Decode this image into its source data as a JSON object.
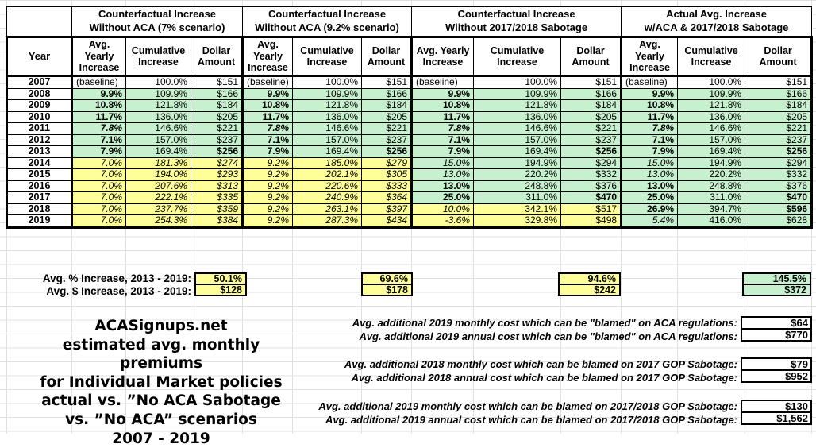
{
  "table": {
    "groups": [
      {
        "line1": "Counterfactual Increase",
        "line2": "Wiithout ACA (7% scenario)"
      },
      {
        "line1": "Counterfactual Increase",
        "line2": "Wiithout ACA (9.2% scenario)"
      },
      {
        "line1": "Counterfactual Increase",
        "line2": "Wiithout 2017/2018 Sabotage"
      },
      {
        "line1": "Actual Avg. Increase",
        "line2": "w/ACA & 2017/2018 Sabotage"
      }
    ],
    "year_header": "Year",
    "subheaders": [
      "Avg. Yearly Increase",
      "Cumulative Increase",
      "Dollar Amount"
    ],
    "rows": [
      {
        "y": "2007",
        "c": [
          [
            "(baseline)",
            "n",
            "w"
          ],
          [
            "100.0%",
            "n",
            "w"
          ],
          [
            "$151",
            "n",
            "w"
          ],
          [
            "(baseline)",
            "n",
            "w"
          ],
          [
            "100.0%",
            "n",
            "w"
          ],
          [
            "$151",
            "n",
            "w"
          ],
          [
            "(baseline)",
            "n",
            "w"
          ],
          [
            "100.0%",
            "n",
            "w"
          ],
          [
            "$151",
            "n",
            "w"
          ],
          [
            "(baseline)",
            "n",
            "w"
          ],
          [
            "100.0%",
            "n",
            "w"
          ],
          [
            "$151",
            "n",
            "w"
          ]
        ]
      },
      {
        "y": "2008",
        "c": [
          [
            "9.9%",
            "b",
            "g"
          ],
          [
            "109.9%",
            "n",
            "g"
          ],
          [
            "$166",
            "n",
            "g"
          ],
          [
            "9.9%",
            "b",
            "g"
          ],
          [
            "109.9%",
            "n",
            "g"
          ],
          [
            "$166",
            "n",
            "g"
          ],
          [
            "9.9%",
            "b",
            "g"
          ],
          [
            "109.9%",
            "n",
            "g"
          ],
          [
            "$166",
            "n",
            "g"
          ],
          [
            "9.9%",
            "b",
            "g"
          ],
          [
            "109.9%",
            "n",
            "g"
          ],
          [
            "$166",
            "n",
            "g"
          ]
        ]
      },
      {
        "y": "2009",
        "c": [
          [
            "10.8%",
            "b",
            "g"
          ],
          [
            "121.8%",
            "n",
            "g"
          ],
          [
            "$184",
            "n",
            "g"
          ],
          [
            "10.8%",
            "b",
            "g"
          ],
          [
            "121.8%",
            "n",
            "g"
          ],
          [
            "$184",
            "n",
            "g"
          ],
          [
            "10.8%",
            "b",
            "g"
          ],
          [
            "121.8%",
            "n",
            "g"
          ],
          [
            "$184",
            "n",
            "g"
          ],
          [
            "10.8%",
            "b",
            "g"
          ],
          [
            "121.8%",
            "n",
            "g"
          ],
          [
            "$184",
            "n",
            "g"
          ]
        ]
      },
      {
        "y": "2010",
        "c": [
          [
            "11.7%",
            "b",
            "g"
          ],
          [
            "136.0%",
            "n",
            "g"
          ],
          [
            "$205",
            "n",
            "g"
          ],
          [
            "11.7%",
            "b",
            "g"
          ],
          [
            "136.0%",
            "n",
            "g"
          ],
          [
            "$205",
            "n",
            "g"
          ],
          [
            "11.7%",
            "b",
            "g"
          ],
          [
            "136.0%",
            "n",
            "g"
          ],
          [
            "$205",
            "n",
            "g"
          ],
          [
            "11.7%",
            "b",
            "g"
          ],
          [
            "136.0%",
            "n",
            "g"
          ],
          [
            "$205",
            "n",
            "g"
          ]
        ]
      },
      {
        "y": "2011",
        "c": [
          [
            "7.8%",
            "bi",
            "g"
          ],
          [
            "146.6%",
            "n",
            "g"
          ],
          [
            "$221",
            "n",
            "g"
          ],
          [
            "7.8%",
            "bi",
            "g"
          ],
          [
            "146.6%",
            "n",
            "g"
          ],
          [
            "$221",
            "n",
            "g"
          ],
          [
            "7.8%",
            "bi",
            "g"
          ],
          [
            "146.6%",
            "n",
            "g"
          ],
          [
            "$221",
            "n",
            "g"
          ],
          [
            "7.8%",
            "bi",
            "g"
          ],
          [
            "146.6%",
            "n",
            "g"
          ],
          [
            "$221",
            "n",
            "g"
          ]
        ]
      },
      {
        "y": "2012",
        "c": [
          [
            "7.1%",
            "b",
            "g"
          ],
          [
            "157.0%",
            "n",
            "g"
          ],
          [
            "$237",
            "n",
            "g"
          ],
          [
            "7.1%",
            "b",
            "g"
          ],
          [
            "157.0%",
            "n",
            "g"
          ],
          [
            "$237",
            "n",
            "g"
          ],
          [
            "7.1%",
            "b",
            "g"
          ],
          [
            "157.0%",
            "n",
            "g"
          ],
          [
            "$237",
            "n",
            "g"
          ],
          [
            "7.1%",
            "b",
            "g"
          ],
          [
            "157.0%",
            "n",
            "g"
          ],
          [
            "$237",
            "n",
            "g"
          ]
        ]
      },
      {
        "y": "2013",
        "c": [
          [
            "7.9%",
            "b",
            "g"
          ],
          [
            "169.4%",
            "n",
            "g"
          ],
          [
            "$256",
            "b",
            "g"
          ],
          [
            "7.9%",
            "b",
            "g"
          ],
          [
            "169.4%",
            "n",
            "g"
          ],
          [
            "$256",
            "b",
            "g"
          ],
          [
            "7.9%",
            "b",
            "g"
          ],
          [
            "169.4%",
            "n",
            "g"
          ],
          [
            "$256",
            "b",
            "g"
          ],
          [
            "7.9%",
            "b",
            "g"
          ],
          [
            "169.4%",
            "n",
            "g"
          ],
          [
            "$256",
            "b",
            "g"
          ]
        ]
      },
      {
        "y": "2014",
        "c": [
          [
            "7.0%",
            "i",
            "y"
          ],
          [
            "181.3%",
            "i",
            "y"
          ],
          [
            "$274",
            "i",
            "y"
          ],
          [
            "9.2%",
            "i",
            "y"
          ],
          [
            "185.0%",
            "i",
            "y"
          ],
          [
            "$279",
            "i",
            "y"
          ],
          [
            "15.0%",
            "i",
            "g"
          ],
          [
            "194.9%",
            "n",
            "g"
          ],
          [
            "$294",
            "n",
            "g"
          ],
          [
            "15.0%",
            "i",
            "g"
          ],
          [
            "194.9%",
            "n",
            "g"
          ],
          [
            "$294",
            "n",
            "g"
          ]
        ]
      },
      {
        "y": "2015",
        "c": [
          [
            "7.0%",
            "i",
            "y"
          ],
          [
            "194.0%",
            "i",
            "y"
          ],
          [
            "$293",
            "i",
            "y"
          ],
          [
            "9.2%",
            "i",
            "y"
          ],
          [
            "202.1%",
            "i",
            "y"
          ],
          [
            "$305",
            "i",
            "y"
          ],
          [
            "13.0%",
            "i",
            "g"
          ],
          [
            "220.2%",
            "n",
            "g"
          ],
          [
            "$332",
            "n",
            "g"
          ],
          [
            "13.0%",
            "i",
            "g"
          ],
          [
            "220.2%",
            "n",
            "g"
          ],
          [
            "$332",
            "n",
            "g"
          ]
        ]
      },
      {
        "y": "2016",
        "c": [
          [
            "7.0%",
            "i",
            "y"
          ],
          [
            "207.6%",
            "i",
            "y"
          ],
          [
            "$313",
            "i",
            "y"
          ],
          [
            "9.2%",
            "i",
            "y"
          ],
          [
            "220.6%",
            "i",
            "y"
          ],
          [
            "$333",
            "i",
            "y"
          ],
          [
            "13.0%",
            "b",
            "g"
          ],
          [
            "248.8%",
            "n",
            "g"
          ],
          [
            "$376",
            "n",
            "g"
          ],
          [
            "13.0%",
            "b",
            "g"
          ],
          [
            "248.8%",
            "n",
            "g"
          ],
          [
            "$376",
            "n",
            "g"
          ]
        ]
      },
      {
        "y": "2017",
        "c": [
          [
            "7.0%",
            "i",
            "y"
          ],
          [
            "222.1%",
            "i",
            "y"
          ],
          [
            "$335",
            "i",
            "y"
          ],
          [
            "9.2%",
            "i",
            "y"
          ],
          [
            "240.9%",
            "i",
            "y"
          ],
          [
            "$364",
            "i",
            "y"
          ],
          [
            "25.0%",
            "b",
            "g"
          ],
          [
            "311.0%",
            "n",
            "g"
          ],
          [
            "$470",
            "b",
            "g"
          ],
          [
            "25.0%",
            "b",
            "g"
          ],
          [
            "311.0%",
            "n",
            "g"
          ],
          [
            "$470",
            "b",
            "g"
          ]
        ]
      },
      {
        "y": "2018",
        "c": [
          [
            "7.0%",
            "i",
            "y"
          ],
          [
            "237.7%",
            "i",
            "y"
          ],
          [
            "$359",
            "i",
            "y"
          ],
          [
            "9.2%",
            "i",
            "y"
          ],
          [
            "263.1%",
            "i",
            "y"
          ],
          [
            "$397",
            "i",
            "y"
          ],
          [
            "10.0%",
            "i",
            "y"
          ],
          [
            "342.1%",
            "n",
            "y"
          ],
          [
            "$517",
            "n",
            "y"
          ],
          [
            "26.9%",
            "b",
            "g"
          ],
          [
            "394.7%",
            "n",
            "g"
          ],
          [
            "$596",
            "b",
            "g"
          ]
        ]
      },
      {
        "y": "2019",
        "c": [
          [
            "7.0%",
            "i",
            "y"
          ],
          [
            "254.3%",
            "i",
            "y"
          ],
          [
            "$384",
            "i",
            "y"
          ],
          [
            "9.2%",
            "i",
            "y"
          ],
          [
            "287.3%",
            "i",
            "y"
          ],
          [
            "$434",
            "i",
            "y"
          ],
          [
            "-3.6%",
            "i",
            "y"
          ],
          [
            "329.8%",
            "n",
            "y"
          ],
          [
            "$498",
            "n",
            "y"
          ],
          [
            "5.4%",
            "i",
            "g"
          ],
          [
            "416.0%",
            "n",
            "g"
          ],
          [
            "$628",
            "n",
            "g"
          ]
        ]
      }
    ]
  },
  "summary": {
    "pct_label": "Avg. % Increase, 2013 - 2019:",
    "usd_label": "Avg. $ Increase, 2013 - 2019:",
    "boxes": [
      {
        "pct": "50.1%",
        "usd": "$128",
        "bg": "y"
      },
      {
        "pct": "69.6%",
        "usd": "$178",
        "bg": "y"
      },
      {
        "pct": "94.6%",
        "usd": "$242",
        "bg": "y"
      },
      {
        "pct": "145.5%",
        "usd": "$372",
        "bg": "g"
      }
    ]
  },
  "caption": {
    "lines": [
      "ACASignups.net",
      "estimated avg. monthly premiums",
      "for Individual Market policies",
      "actual vs. ”No ACA Sabotage",
      "vs. ”No ACA” scenarios",
      "2007 - 2019"
    ]
  },
  "notes": [
    {
      "monthly_label": "Avg. additional 2019 monthly cost which can be \"blamed\" on ACA regulations:",
      "monthly_value": "$64",
      "annual_label": "Avg. additional 2019 annual cost which can be \"blamed\" on ACA regulations:",
      "annual_value": "$770"
    },
    {
      "monthly_label": "Avg. additional 2018 monthly cost which can be blamed on 2017 GOP Sabotage:",
      "monthly_value": "$79",
      "annual_label": "Avg. additional 2018 annual cost which can be blamed on 2017 GOP Sabotage:",
      "annual_value": "$952"
    },
    {
      "monthly_label": "Avg. additional 2019 monthly cost which can be blamed on 2017/2018 GOP Sabotage:",
      "monthly_value": "$130",
      "annual_label": "Avg. additional 2019 annual cost which can be blamed on 2017/2018 GOP Sabotage:",
      "annual_value": "$1,562"
    }
  ],
  "colors": {
    "green": "#c6f0ce",
    "yellow": "#ffff99"
  }
}
